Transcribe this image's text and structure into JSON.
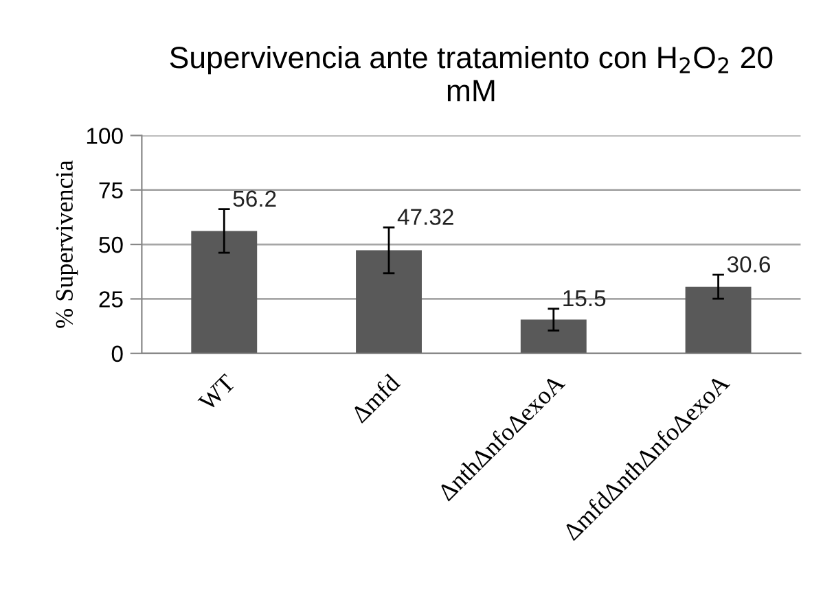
{
  "chart_data": {
    "type": "bar",
    "title": "Supervivencia ante tratamiento con H$_{2}$O$_{2}$ 20\nmM",
    "ylabel": "% Supervivencia",
    "categories": [
      "WT",
      "Δmfd",
      "ΔnthΔnfoΔexoA",
      "ΔmfdΔnthΔnfoΔexoA"
    ],
    "values": [
      56.2,
      47.32,
      15.5,
      30.6
    ],
    "errors": [
      10,
      10.5,
      5,
      5.5
    ],
    "value_labels": [
      "56.2",
      "47.32",
      "15.5",
      "30.6"
    ],
    "color": "#595959",
    "ylim": [
      0,
      100
    ],
    "yticks": [
      0,
      25,
      50,
      75,
      100
    ],
    "grid": "y",
    "legend": false
  }
}
